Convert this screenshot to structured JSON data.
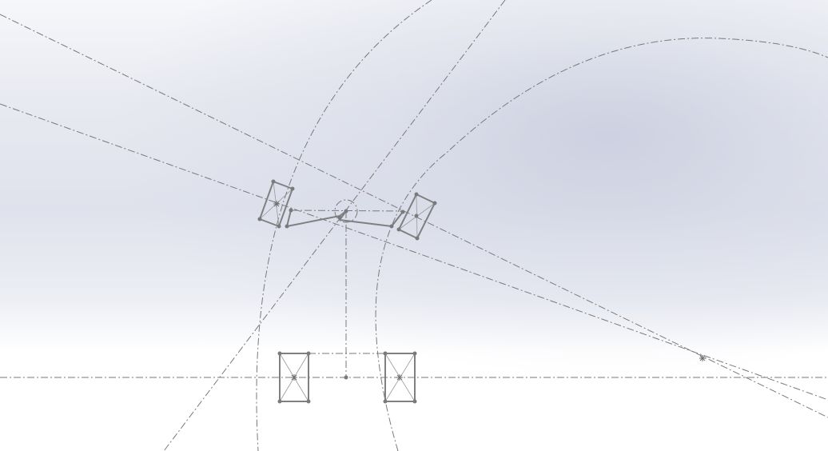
{
  "app": {
    "view": "sketch-graphics-area"
  },
  "colors": {
    "geometry": "#808082",
    "construction": "#7a7a7c",
    "background_top": "#f6f7fa",
    "background_mid": "#dfe2ec",
    "background_bottom": "#ffffff"
  },
  "icons": {
    "sketch_point": "sketch-point-icon",
    "centroid_marker": "asterisk-marker-icon"
  }
}
